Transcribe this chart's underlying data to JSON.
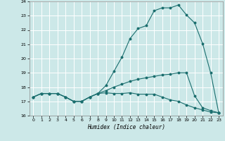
{
  "xlabel": "Humidex (Indice chaleur)",
  "xlim": [
    -0.5,
    23.5
  ],
  "ylim": [
    16,
    24
  ],
  "yticks": [
    16,
    17,
    18,
    19,
    20,
    21,
    22,
    23,
    24
  ],
  "xticks": [
    0,
    1,
    2,
    3,
    4,
    5,
    6,
    7,
    8,
    9,
    10,
    11,
    12,
    13,
    14,
    15,
    16,
    17,
    18,
    19,
    20,
    21,
    22,
    23
  ],
  "bg_color": "#cce8e8",
  "grid_color": "#ffffff",
  "line_color": "#1a6e6e",
  "curve1_x": [
    0,
    1,
    2,
    3,
    4,
    5,
    6,
    7,
    8,
    9,
    10,
    11,
    12,
    13,
    14,
    15,
    16,
    17,
    18,
    19,
    20,
    21,
    22,
    23
  ],
  "curve1_y": [
    17.3,
    17.55,
    17.55,
    17.55,
    17.3,
    17.0,
    17.0,
    17.3,
    17.55,
    18.1,
    19.1,
    20.1,
    21.4,
    22.1,
    22.3,
    23.35,
    23.55,
    23.55,
    23.75,
    23.05,
    22.5,
    21.05,
    19.0,
    16.2
  ],
  "curve2_x": [
    0,
    1,
    2,
    3,
    4,
    5,
    6,
    7,
    8,
    9,
    10,
    11,
    12,
    13,
    14,
    15,
    16,
    17,
    18,
    19,
    20,
    21,
    22,
    23
  ],
  "curve2_y": [
    17.3,
    17.55,
    17.55,
    17.55,
    17.3,
    17.0,
    17.0,
    17.3,
    17.55,
    17.75,
    18.0,
    18.2,
    18.4,
    18.55,
    18.65,
    18.75,
    18.85,
    18.9,
    19.0,
    19.0,
    17.4,
    16.55,
    16.35,
    16.2
  ],
  "curve3_x": [
    0,
    1,
    2,
    3,
    4,
    5,
    6,
    7,
    8,
    9,
    10,
    11,
    12,
    13,
    14,
    15,
    16,
    17,
    18,
    19,
    20,
    21,
    22,
    23
  ],
  "curve3_y": [
    17.3,
    17.55,
    17.55,
    17.55,
    17.3,
    17.0,
    17.0,
    17.3,
    17.55,
    17.6,
    17.55,
    17.55,
    17.6,
    17.5,
    17.5,
    17.5,
    17.3,
    17.1,
    17.0,
    16.75,
    16.55,
    16.4,
    16.25,
    16.2
  ]
}
